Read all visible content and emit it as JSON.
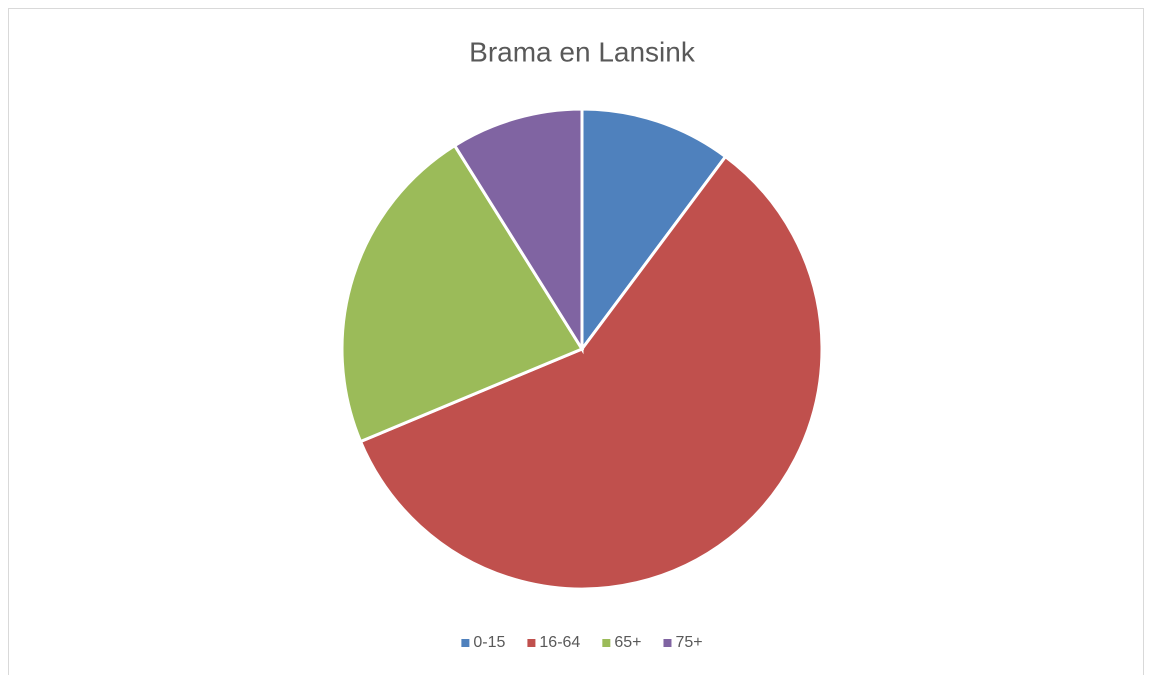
{
  "chart_data": {
    "type": "pie",
    "title": "Brama en Lansink",
    "categories": [
      "0-15",
      "16-64",
      "65+",
      "75+"
    ],
    "values": [
      10.2,
      58.5,
      22.4,
      8.9
    ],
    "colors": [
      "#4f81bd",
      "#c0504d",
      "#9bbb59",
      "#8064a2"
    ],
    "legend": "bottom"
  }
}
